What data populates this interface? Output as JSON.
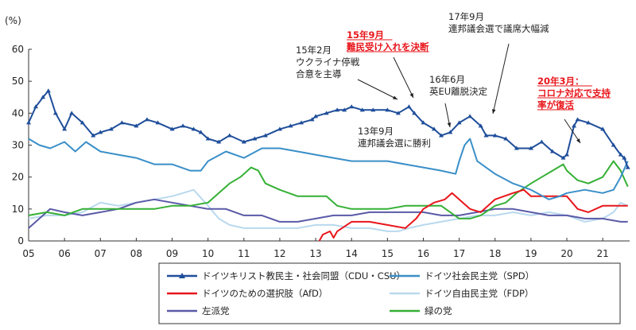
{
  "chart_data": {
    "type": "line",
    "ylabel": "(%)",
    "ylim": [
      0,
      60
    ],
    "yticks": [
      0,
      10,
      20,
      30,
      40,
      50,
      60
    ],
    "xlim": [
      2005,
      2021.75
    ],
    "xticks": [
      {
        "v": 2005,
        "label": "05"
      },
      {
        "v": 2006,
        "label": "06"
      },
      {
        "v": 2007,
        "label": "07"
      },
      {
        "v": 2008,
        "label": "08"
      },
      {
        "v": 2009,
        "label": "09"
      },
      {
        "v": 2010,
        "label": "10"
      },
      {
        "v": 2011,
        "label": "11"
      },
      {
        "v": 2012,
        "label": "12"
      },
      {
        "v": 2013,
        "label": "13"
      },
      {
        "v": 2014,
        "label": "14"
      },
      {
        "v": 2015,
        "label": "15"
      },
      {
        "v": 2016,
        "label": "16"
      },
      {
        "v": 2017,
        "label": "17"
      },
      {
        "v": 2018,
        "label": "18"
      },
      {
        "v": 2019,
        "label": "19"
      },
      {
        "v": 2020,
        "label": "20"
      },
      {
        "v": 2021,
        "label": "21"
      }
    ],
    "grid": false,
    "legend_position": "bottom",
    "series": [
      {
        "name": "ドイツキリスト教民主・社会同盟（CDU・CSU）",
        "color": "#1f4e9a",
        "marker": "triangle",
        "x": [
          2005,
          2005.2,
          2005.4,
          2005.55,
          2005.75,
          2006,
          2006.2,
          2006.5,
          2006.8,
          2007,
          2007.3,
          2007.6,
          2008,
          2008.3,
          2008.6,
          2009,
          2009.3,
          2009.6,
          2009.8,
          2010,
          2010.3,
          2010.6,
          2011,
          2011.3,
          2011.6,
          2012,
          2012.3,
          2012.6,
          2012.9,
          2013,
          2013.3,
          2013.6,
          2013.8,
          2014,
          2014.3,
          2014.6,
          2015,
          2015.3,
          2015.6,
          2015.75,
          2016,
          2016.3,
          2016.5,
          2016.75,
          2017,
          2017.3,
          2017.6,
          2017.75,
          2018,
          2018.3,
          2018.6,
          2019,
          2019.3,
          2019.6,
          2019.9,
          2020,
          2020.2,
          2020.3,
          2020.6,
          2021,
          2021.3,
          2021.5,
          2021.6,
          2021.7
        ],
        "y": [
          37,
          42,
          45,
          47,
          40,
          35,
          40,
          37,
          33,
          34,
          35,
          37,
          36,
          38,
          37,
          35,
          36,
          35,
          34,
          32,
          31,
          33,
          31,
          32,
          33,
          35,
          36,
          37,
          38,
          39,
          40,
          41,
          41,
          42,
          41,
          41,
          41,
          40,
          42,
          40,
          37,
          35,
          33,
          34,
          37,
          39,
          36,
          33,
          33,
          32,
          29,
          29,
          31,
          28,
          26,
          27,
          36,
          38,
          37,
          35,
          30,
          27,
          26,
          23
        ]
      },
      {
        "name": "ドイツ社会民主党（SPD）",
        "color": "#3a8fc8",
        "x": [
          2005,
          2005.3,
          2005.6,
          2006,
          2006.3,
          2006.6,
          2007,
          2007.5,
          2008,
          2008.5,
          2009,
          2009.5,
          2009.8,
          2010,
          2010.5,
          2011,
          2011.5,
          2012,
          2012.5,
          2013,
          2013.5,
          2014,
          2014.5,
          2015,
          2015.5,
          2016,
          2016.5,
          2016.9,
          2017,
          2017.15,
          2017.3,
          2017.5,
          2018,
          2018.5,
          2019,
          2019.5,
          2019.8,
          2020,
          2020.5,
          2021,
          2021.3,
          2021.5,
          2021.7
        ],
        "y": [
          32,
          30,
          29,
          31,
          28,
          31,
          28,
          27,
          26,
          24,
          24,
          22,
          22,
          25,
          28,
          26,
          29,
          29,
          28,
          27,
          26,
          25,
          25,
          25,
          24,
          23,
          22,
          21,
          25,
          30,
          32,
          25,
          21,
          18,
          16,
          13,
          14,
          15,
          16,
          15,
          16,
          20,
          25
        ]
      },
      {
        "name": "ドイツのための選択肢（AfD）",
        "color": "#e8161b",
        "x": [
          2013.1,
          2013.2,
          2013.4,
          2013.5,
          2013.6,
          2014,
          2014.5,
          2015,
          2015.5,
          2015.8,
          2016,
          2016.3,
          2016.6,
          2016.8,
          2017,
          2017.3,
          2017.6,
          2018,
          2018.5,
          2018.8,
          2019,
          2019.5,
          2020,
          2020.3,
          2020.6,
          2021,
          2021.3,
          2021.6,
          2021.7
        ],
        "y": [
          0,
          2,
          3,
          1,
          3,
          6,
          6,
          5,
          4,
          7,
          10,
          12,
          13,
          15,
          13,
          10,
          9,
          13,
          15,
          16,
          14,
          14,
          14,
          10,
          9,
          11,
          11,
          11,
          11
        ]
      },
      {
        "name": "ドイツ自由民主党（FDP）",
        "color": "#b9d9ee",
        "x": [
          2005,
          2005.5,
          2006,
          2006.5,
          2007,
          2007.5,
          2008,
          2008.5,
          2009,
          2009.3,
          2009.6,
          2010,
          2010.3,
          2010.6,
          2011,
          2011.5,
          2012,
          2012.5,
          2013,
          2013.5,
          2014,
          2014.5,
          2015,
          2015.3,
          2015.6,
          2016,
          2016.5,
          2017,
          2017.5,
          2018,
          2018.5,
          2019,
          2019.5,
          2020,
          2020.5,
          2021,
          2021.3,
          2021.5,
          2021.7
        ],
        "y": [
          7,
          8,
          8,
          9,
          12,
          11,
          12,
          13,
          14,
          15,
          16,
          11,
          7,
          5,
          4,
          4,
          4,
          4,
          5,
          5,
          4,
          4,
          3,
          3,
          4,
          5,
          6,
          7,
          8,
          8,
          9,
          8,
          9,
          8,
          6,
          7,
          9,
          12,
          11
        ]
      },
      {
        "name": "左派党",
        "color": "#5a5aa8",
        "x": [
          2005,
          2005.3,
          2005.6,
          2006,
          2006.5,
          2007,
          2007.5,
          2008,
          2008.5,
          2009,
          2009.5,
          2010,
          2010.5,
          2011,
          2011.5,
          2012,
          2012.5,
          2013,
          2013.5,
          2014,
          2014.5,
          2015,
          2015.5,
          2016,
          2016.5,
          2017,
          2017.5,
          2018,
          2018.5,
          2019,
          2019.5,
          2020,
          2020.5,
          2021,
          2021.5,
          2021.7
        ],
        "y": [
          4,
          7,
          10,
          9,
          8,
          9,
          10,
          12,
          13,
          12,
          11,
          10,
          10,
          8,
          8,
          6,
          6,
          7,
          8,
          8,
          9,
          9,
          9,
          9,
          8,
          8,
          9,
          10,
          10,
          9,
          8,
          8,
          7,
          7,
          6,
          6
        ]
      },
      {
        "name": "緑の党",
        "color": "#35b035",
        "x": [
          2005,
          2005.5,
          2006,
          2006.5,
          2007,
          2007.5,
          2008,
          2008.5,
          2009,
          2009.5,
          2010,
          2010.3,
          2010.6,
          2010.9,
          2011,
          2011.2,
          2011.4,
          2011.6,
          2012,
          2012.5,
          2013,
          2013.3,
          2013.6,
          2014,
          2014.5,
          2015,
          2015.5,
          2016,
          2016.5,
          2017,
          2017.3,
          2017.6,
          2018,
          2018.3,
          2018.6,
          2019,
          2019.3,
          2019.6,
          2019.9,
          2020,
          2020.3,
          2020.6,
          2021,
          2021.3,
          2021.5,
          2021.7
        ],
        "y": [
          8,
          9,
          8,
          10,
          10,
          10,
          10,
          10,
          11,
          11,
          12,
          15,
          18,
          20,
          21,
          23,
          22,
          18,
          16,
          14,
          14,
          14,
          11,
          10,
          10,
          10,
          11,
          11,
          11,
          7,
          7,
          8,
          11,
          12,
          15,
          18,
          20,
          22,
          24,
          22,
          19,
          18,
          20,
          25,
          22,
          17
        ]
      }
    ],
    "annotations": [
      {
        "lines": [
          "15年2月",
          "ウクライナ停戦",
          "合意を主導"
        ],
        "color": "#222222",
        "x": 2015.1,
        "y": 41
      },
      {
        "lines": [
          "13年9月",
          "連邦議会選に勝利"
        ],
        "color": "#222222",
        "x": 2013.7,
        "y": 41
      },
      {
        "lines": [
          "15年9月",
          "難民受け入れを決断"
        ],
        "color": "#e8161b",
        "x": 2015.7,
        "y": 42
      },
      {
        "lines": [
          "16年6月",
          "英EU離脱決定"
        ],
        "color": "#222222",
        "x": 2016.45,
        "y": 33
      },
      {
        "lines": [
          "17年9月",
          "連邦議会選で議席大幅減"
        ],
        "color": "#222222",
        "x": 2017.7,
        "y": 38
      },
      {
        "lines": [
          "20年3月：",
          "コロナ対応で支持",
          "率が復活"
        ],
        "color": "#e8161b",
        "x": 2020.2,
        "y": 36
      }
    ]
  }
}
